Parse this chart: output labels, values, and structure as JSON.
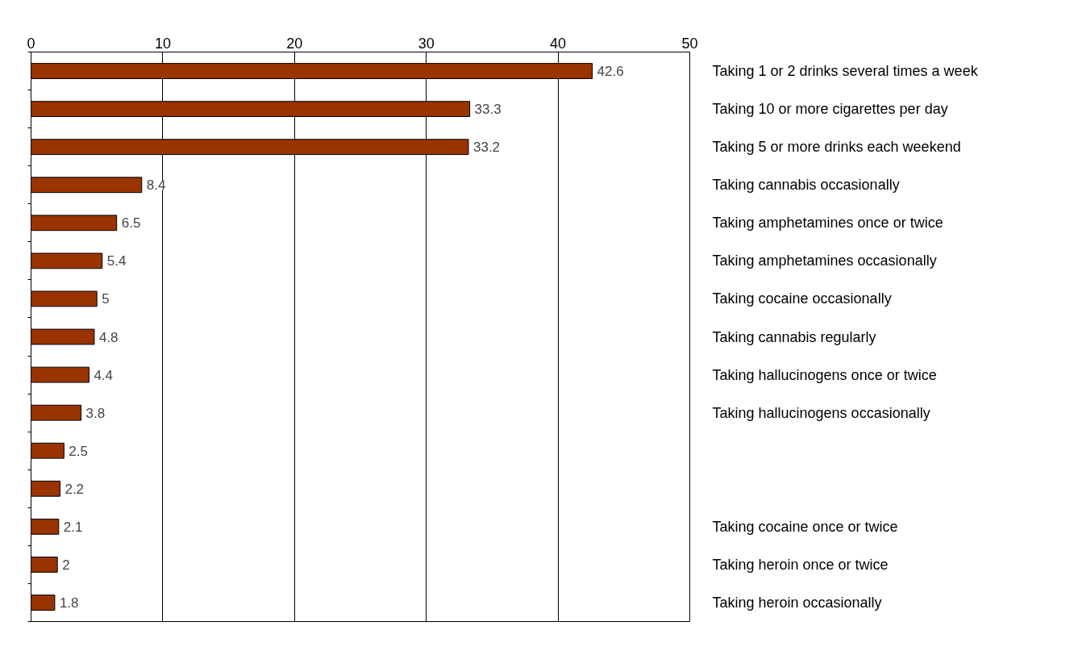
{
  "chart_data": {
    "type": "bar",
    "orientation": "horizontal",
    "categories": [
      "Taking 1 or 2 drinks several times a week",
      "Taking 10 or more cigarettes per day",
      "Taking 5 or more drinks each weekend",
      "Taking cannabis occasionally",
      "Taking amphetamines once or twice",
      "Taking amphetamines occasionally",
      "Taking cocaine occasionally",
      "Taking cannabis regularly",
      "Taking hallucinogens once or twice",
      "Taking hallucinogens occasionally",
      null,
      null,
      "Taking cocaine once or twice",
      "Taking heroin once or twice",
      "Taking heroin occasionally"
    ],
    "values": [
      42.6,
      33.3,
      33.2,
      8.4,
      6.5,
      5.4,
      5,
      4.8,
      4.4,
      3.8,
      2.5,
      2.2,
      2.1,
      2,
      1.8
    ],
    "color": "#993300",
    "xlim": [
      0,
      50
    ],
    "xticks": [
      0,
      10,
      20,
      30,
      40,
      50
    ],
    "grid": "x",
    "data_labels": true
  }
}
